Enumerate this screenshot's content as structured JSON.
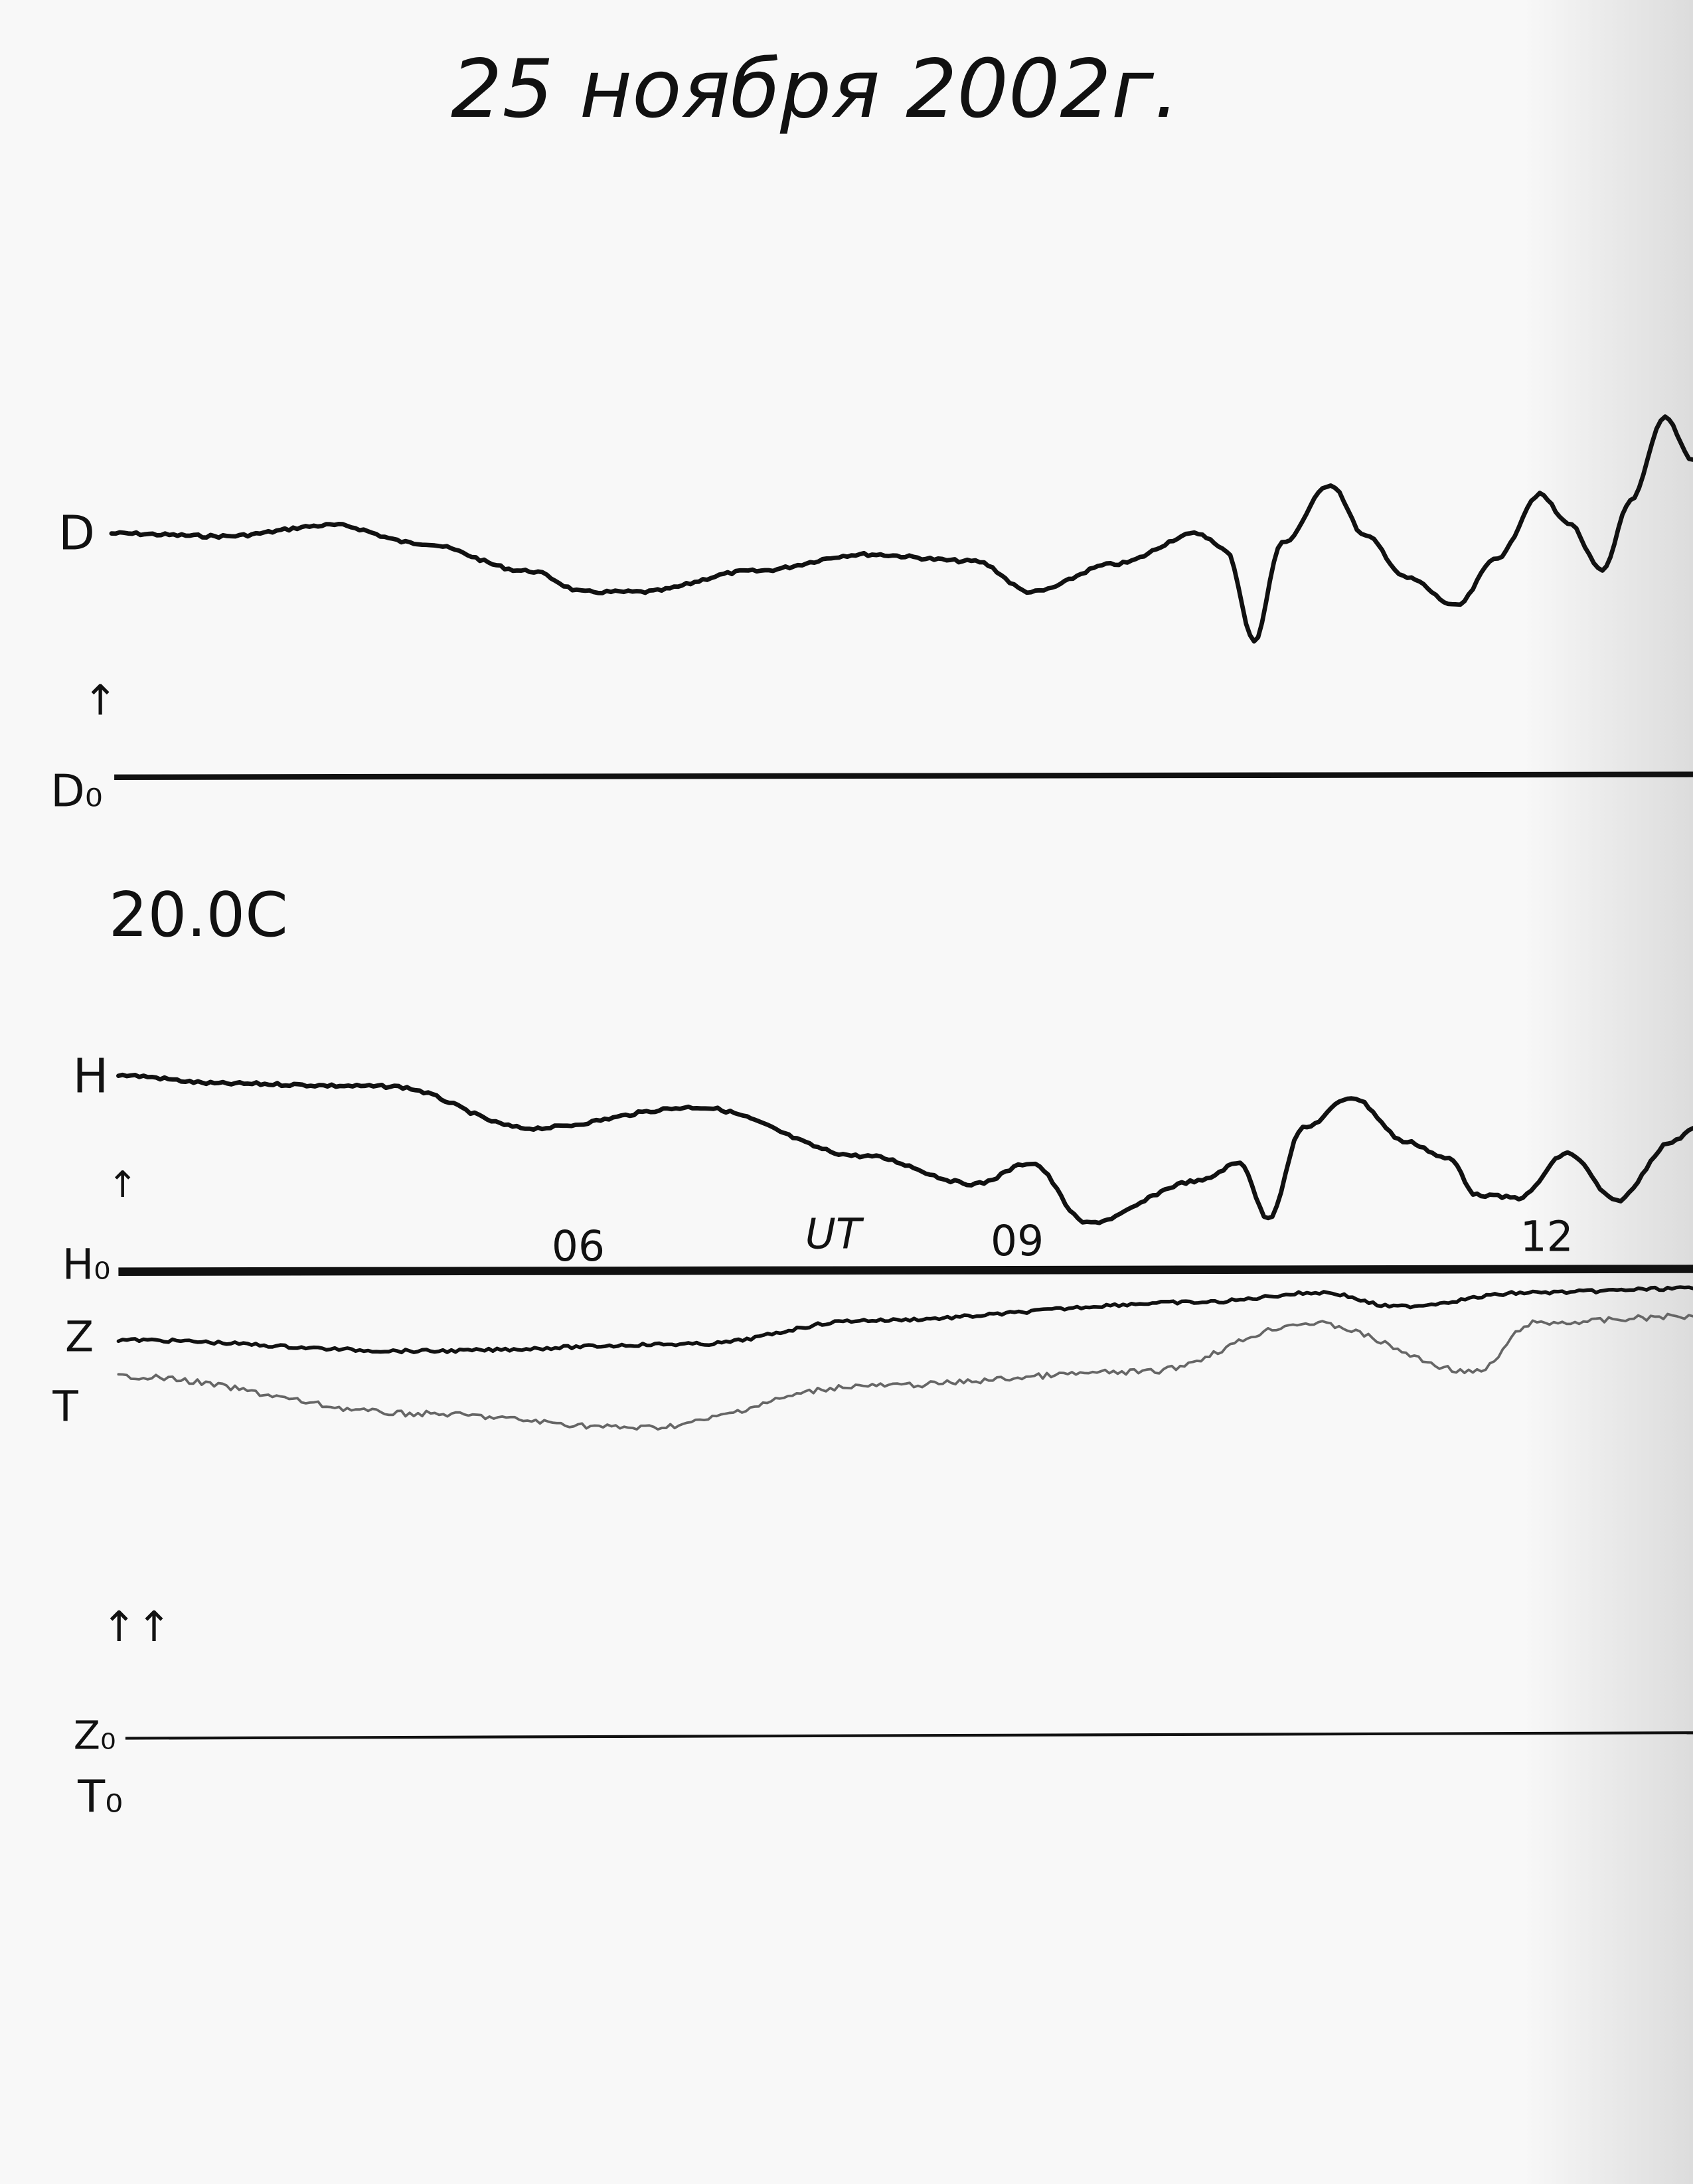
{
  "header": {
    "title": "25 ноября 2002г."
  },
  "scale_note": "20.0C",
  "labels": {
    "d": "D",
    "d_arrow": "↑",
    "d0": "D₀",
    "h": "H",
    "h_arrow": "↑",
    "h0": "H₀",
    "z": "Z",
    "t": "T",
    "zt_arrows": "↑↑",
    "z0": "Z₀",
    "t0": "T₀"
  },
  "time_marks": [
    "06",
    "UT",
    "09",
    "12"
  ]
}
